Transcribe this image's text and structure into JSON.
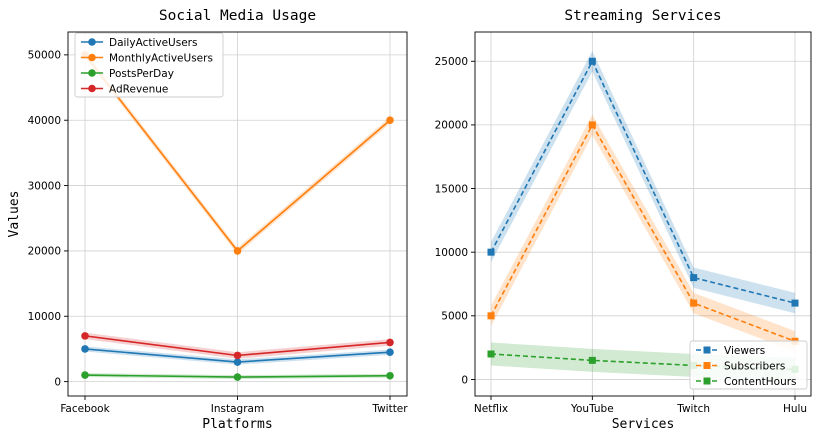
{
  "chart_data": [
    {
      "type": "line",
      "title": "Social Media Usage",
      "xlabel": "Platforms",
      "ylabel": "Values",
      "categories": [
        "Facebook",
        "Instagram",
        "Twitter"
      ],
      "ylim": [
        -2200,
        53500
      ],
      "yticks": [
        0,
        10000,
        20000,
        30000,
        40000,
        50000
      ],
      "grid": true,
      "legend_position": "top-left",
      "series": [
        {
          "name": "DailyActiveUsers",
          "values": [
            5000,
            3000,
            4500
          ],
          "color": "#1f77b4",
          "marker": "circle",
          "dashed": false,
          "band": 400
        },
        {
          "name": "MonthlyActiveUsers",
          "values": [
            50000,
            20000,
            40000
          ],
          "color": "#ff7f0e",
          "marker": "circle",
          "dashed": false,
          "band": 500
        },
        {
          "name": "PostsPerDay",
          "values": [
            1000,
            700,
            900
          ],
          "color": "#2ca02c",
          "marker": "circle",
          "dashed": false,
          "band": 300
        },
        {
          "name": "AdRevenue",
          "values": [
            7000,
            4000,
            6000
          ],
          "color": "#d62728",
          "marker": "circle",
          "dashed": false,
          "band": 500
        }
      ]
    },
    {
      "type": "line",
      "title": "Streaming Services",
      "xlabel": "Services",
      "ylabel": "",
      "categories": [
        "Netflix",
        "YouTube",
        "Twitch",
        "Hulu"
      ],
      "ylim": [
        -1300,
        27300
      ],
      "yticks": [
        0,
        5000,
        10000,
        15000,
        20000,
        25000
      ],
      "grid": true,
      "legend_position": "bottom-right",
      "series": [
        {
          "name": "Viewers",
          "values": [
            10000,
            25000,
            8000,
            6000
          ],
          "color": "#1f77b4",
          "marker": "square",
          "dashed": true,
          "band": 800
        },
        {
          "name": "Subscribers",
          "values": [
            5000,
            20000,
            6000,
            3000
          ],
          "color": "#ff7f0e",
          "marker": "square",
          "dashed": true,
          "band": 800
        },
        {
          "name": "ContentHours",
          "values": [
            2000,
            1500,
            1100,
            800
          ],
          "color": "#2ca02c",
          "marker": "square",
          "dashed": true,
          "band": 900
        }
      ]
    }
  ]
}
